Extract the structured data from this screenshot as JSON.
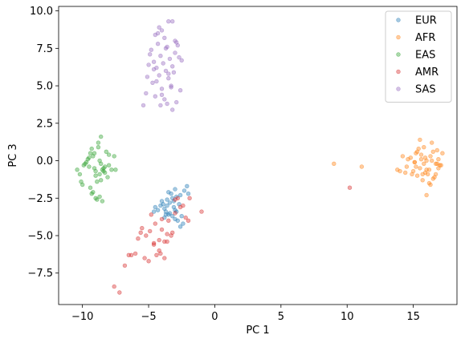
{
  "chart_data": {
    "type": "scatter",
    "title": "",
    "xlabel": "PC 1",
    "ylabel": "PC 3",
    "xlim": [
      -11.8,
      18.3
    ],
    "ylim": [
      -9.6,
      10.3
    ],
    "xticks": [
      -10,
      -5,
      0,
      5,
      10,
      15
    ],
    "yticks": [
      -7.5,
      -5.0,
      -2.5,
      0.0,
      2.5,
      5.0,
      7.5,
      10.0
    ],
    "ytick_labels": [
      "−7.5",
      "−5.0",
      "−2.5",
      "0.0",
      "2.5",
      "5.0",
      "7.5",
      "10.0"
    ],
    "xtick_labels": [
      "−10",
      "−5",
      "0",
      "5",
      "10",
      "15"
    ],
    "grid": false,
    "legend_position": "top-right",
    "marker_alpha": 0.4,
    "series": [
      {
        "name": "EUR",
        "color": "#1f77b4",
        "x": [
          -3.6,
          -3.2,
          -2.9,
          -3.8,
          -3.4,
          -2.6,
          -3.0,
          -4.0,
          -3.5,
          -2.3,
          -3.1,
          -2.8,
          -3.7,
          -4.3,
          -3.3,
          -2.5,
          -3.9,
          -2.1,
          -3.0,
          -4.5,
          -3.6,
          -2.7,
          -3.2,
          -2.0,
          -4.1,
          -3.4,
          -2.9,
          -3.8,
          -2.4,
          -3.5,
          -4.6,
          -3.1,
          -2.6,
          -3.0,
          -3.7
        ],
        "y": [
          -3.0,
          -2.5,
          -3.4,
          -3.2,
          -2.8,
          -2.3,
          -3.9,
          -2.7,
          -3.6,
          -2.0,
          -3.1,
          -4.0,
          -3.4,
          -3.3,
          -2.2,
          -3.7,
          -2.9,
          -1.7,
          -3.3,
          -3.1,
          -2.6,
          -2.9,
          -3.7,
          -2.2,
          -3.0,
          -3.5,
          -2.4,
          -3.8,
          -4.2,
          -2.1,
          -3.4,
          -2.7,
          -4.4,
          -1.9,
          -3.6
        ]
      },
      {
        "name": "AFR",
        "color": "#ff7f0e",
        "x": [
          15.2,
          15.8,
          16.3,
          16.7,
          15.5,
          16.0,
          14.8,
          16.5,
          15.9,
          16.9,
          15.3,
          14.5,
          16.2,
          15.6,
          17.0,
          16.4,
          15.1,
          15.7,
          16.8,
          14.2,
          16.1,
          15.4,
          16.6,
          15.0,
          16.3,
          14.6,
          15.8,
          16.9,
          15.5,
          14.9,
          16.0,
          17.1,
          15.2,
          16.5,
          14.0,
          16.7,
          15.9,
          15.3,
          16.2,
          17.2,
          13.8,
          16.4,
          15.6,
          14.4,
          16.8,
          15.1,
          16.0,
          9.0,
          11.1,
          15.7
        ],
        "y": [
          0.5,
          0.9,
          0.3,
          -0.2,
          -0.5,
          0.0,
          0.2,
          0.6,
          -0.8,
          0.1,
          -1.0,
          -0.4,
          -0.6,
          0.4,
          -0.3,
          1.2,
          -0.1,
          -1.3,
          0.7,
          0.3,
          -0.9,
          0.8,
          -1.1,
          -0.7,
          -1.6,
          0.1,
          -0.2,
          -0.5,
          1.4,
          -0.9,
          -2.3,
          -0.3,
          -0.4,
          -1.2,
          -0.7,
          -0.9,
          0.2,
          0.6,
          -1.5,
          0.5,
          -0.6,
          0.0,
          0.1,
          -0.8,
          -0.2,
          -0.1,
          -0.6,
          -0.2,
          -0.4,
          -0.9
        ]
      },
      {
        "name": "EAS",
        "color": "#2ca02c",
        "x": [
          -9.2,
          -8.8,
          -8.5,
          -9.5,
          -8.2,
          -9.0,
          -8.7,
          -9.8,
          -8.4,
          -9.3,
          -8.0,
          -9.6,
          -8.9,
          -8.6,
          -10.2,
          -9.1,
          -8.3,
          -9.4,
          -7.8,
          -8.7,
          -9.9,
          -8.5,
          -9.2,
          -8.1,
          -10.4,
          -9.0,
          -8.8,
          -9.7,
          -8.4,
          -9.3,
          -8.6,
          -7.5,
          -9.0,
          -8.9,
          -10.0,
          -8.3,
          -9.5,
          -8.7,
          -9.1,
          -8.0,
          -9.4,
          -8.6,
          -7.6,
          -10.1
        ],
        "y": [
          0.3,
          1.2,
          -0.6,
          -0.4,
          0.6,
          -1.0,
          0.0,
          -0.2,
          -0.7,
          0.8,
          -0.3,
          0.1,
          -1.4,
          1.6,
          -0.9,
          -0.5,
          -0.8,
          0.5,
          -0.6,
          -2.4,
          -0.3,
          -2.7,
          -2.1,
          -1.1,
          -0.6,
          -2.5,
          0.9,
          -0.1,
          -0.5,
          -2.2,
          -1.3,
          -0.6,
          -0.7,
          -2.6,
          -1.6,
          -0.4,
          0.2,
          -0.9,
          0.5,
          0.4,
          -1.8,
          -0.2,
          0.3,
          -1.4
        ]
      },
      {
        "name": "AMR",
        "color": "#d62728",
        "x": [
          -3.5,
          -3.0,
          -4.0,
          -2.6,
          -3.8,
          -4.5,
          -2.2,
          -3.2,
          -4.8,
          -5.2,
          -3.6,
          -4.2,
          -5.5,
          -2.8,
          -4.0,
          -3.3,
          -4.4,
          -6.0,
          -5.6,
          -4.6,
          -6.5,
          -3.8,
          -5.0,
          -4.2,
          -6.8,
          -5.8,
          -4.6,
          -2.0,
          -1.9,
          -6.3,
          -5.3,
          -4.1,
          -3.6,
          -7.6,
          -7.2,
          -4.9,
          -2.4,
          -1.0,
          10.2,
          -3.0
        ],
        "y": [
          -4.0,
          -3.5,
          -4.6,
          -3.1,
          -5.4,
          -4.2,
          -3.8,
          -4.8,
          -3.6,
          -5.0,
          -4.9,
          -5.3,
          -4.5,
          -2.5,
          -3.9,
          -5.0,
          -6.3,
          -6.2,
          -4.8,
          -5.6,
          -6.3,
          -6.5,
          -6.7,
          -6.0,
          -7.0,
          -5.2,
          -5.5,
          -4.0,
          -2.5,
          -6.3,
          -6.5,
          -6.2,
          -5.4,
          -8.4,
          -8.8,
          -4.7,
          -3.0,
          -3.4,
          -1.8,
          -2.6
        ]
      },
      {
        "name": "SAS",
        "color": "#9467bd",
        "x": [
          -3.5,
          -4.0,
          -3.2,
          -4.5,
          -3.8,
          -2.9,
          -4.3,
          -3.6,
          -4.8,
          -3.0,
          -4.1,
          -3.4,
          -4.6,
          -3.9,
          -2.7,
          -4.4,
          -3.7,
          -5.0,
          -3.1,
          -4.2,
          -3.5,
          -4.7,
          -3.3,
          -2.6,
          -4.0,
          -5.2,
          -3.8,
          -4.5,
          -2.9,
          -3.6,
          -4.1,
          -3.2,
          -5.4,
          -4.3,
          -3.0,
          -4.9,
          -3.7,
          -4.4,
          -3.3,
          -2.5,
          -4.6,
          -3.5,
          -5.1,
          -4.0,
          -3.2,
          -2.8,
          -4.2
        ],
        "y": [
          9.3,
          8.7,
          9.3,
          8.4,
          8.2,
          7.9,
          7.8,
          7.6,
          7.4,
          7.2,
          7.0,
          6.8,
          6.6,
          6.5,
          6.9,
          6.2,
          6.0,
          6.4,
          5.9,
          5.7,
          5.5,
          5.2,
          5.0,
          4.7,
          4.8,
          4.5,
          4.1,
          4.3,
          3.9,
          3.8,
          3.7,
          3.4,
          3.7,
          8.5,
          8.0,
          7.1,
          7.5,
          5.3,
          4.9,
          6.7,
          6.1,
          5.8,
          5.6,
          4.4,
          6.3,
          7.7,
          8.9
        ]
      }
    ]
  }
}
